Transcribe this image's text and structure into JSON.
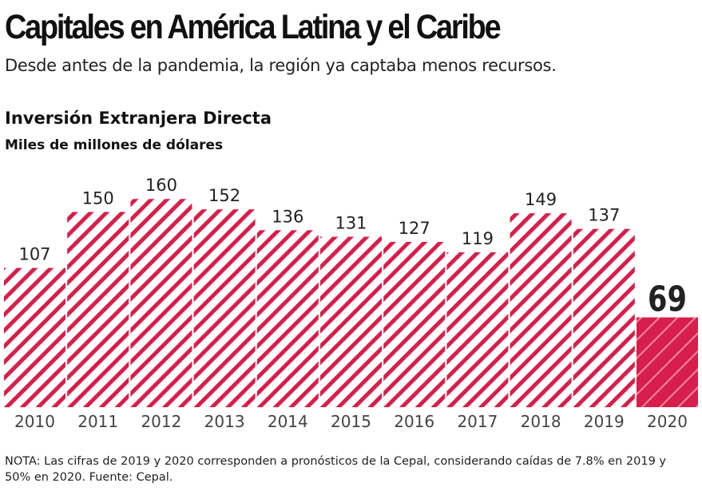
{
  "header": {
    "title": "Capitales en América Latina y el Caribe",
    "subtitle": "Desde antes de la pandemia, la región ya captaba menos recursos."
  },
  "chart_data": {
    "type": "bar",
    "title": "Inversión Extranjera Directa",
    "ylabel": "Miles de millones de dólares",
    "categories": [
      "2010",
      "2011",
      "2012",
      "2013",
      "2014",
      "2015",
      "2016",
      "2017",
      "2018",
      "2019",
      "2020"
    ],
    "values": [
      107,
      150,
      160,
      152,
      136,
      131,
      127,
      119,
      149,
      137,
      69
    ],
    "ylim": [
      0,
      165
    ],
    "grid": false,
    "colors": {
      "bar": "#d81e4a",
      "highlight": "#d81e4a"
    },
    "highlight_category": "2020"
  },
  "footer": {
    "note": "NOTA: Las cifras de 2019 y 2020 corresponden a pronósticos de la Cepal, considerando caídas de 7.8% en 2019 y 50% en 2020. Fuente: Cepal."
  }
}
